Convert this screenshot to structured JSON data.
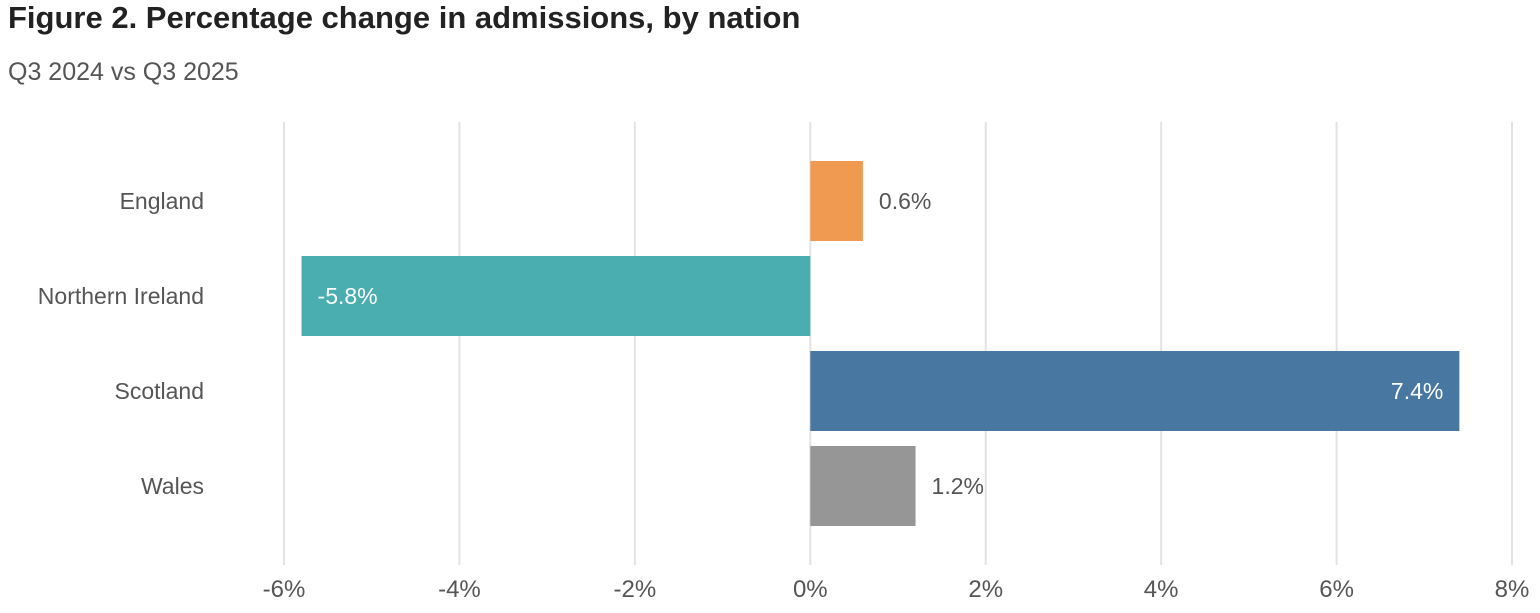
{
  "chart_data": {
    "type": "bar",
    "orientation": "horizontal",
    "title": "Figure 2. Percentage change in admissions, by nation",
    "subtitle": "Q3 2024 vs Q3 2025",
    "xlabel": "",
    "ylabel": "",
    "categories": [
      "England",
      "Northern Ireland",
      "Scotland",
      "Wales"
    ],
    "values": [
      0.6,
      -5.8,
      7.4,
      1.2
    ],
    "data_labels": [
      "0.6%",
      "-5.8%",
      "7.4%",
      "1.2%"
    ],
    "bar_colors": [
      "#EF9A50",
      "#4AADB0",
      "#4878A2",
      "#969696"
    ],
    "xlim": [
      -6,
      8
    ],
    "xticks": [
      -6,
      -4,
      -2,
      0,
      2,
      4,
      6,
      8
    ],
    "xtick_labels": [
      "-6%",
      "-4%",
      "-2%",
      "0%",
      "2%",
      "4%",
      "6%",
      "8%"
    ],
    "grid": true,
    "legend": false
  }
}
